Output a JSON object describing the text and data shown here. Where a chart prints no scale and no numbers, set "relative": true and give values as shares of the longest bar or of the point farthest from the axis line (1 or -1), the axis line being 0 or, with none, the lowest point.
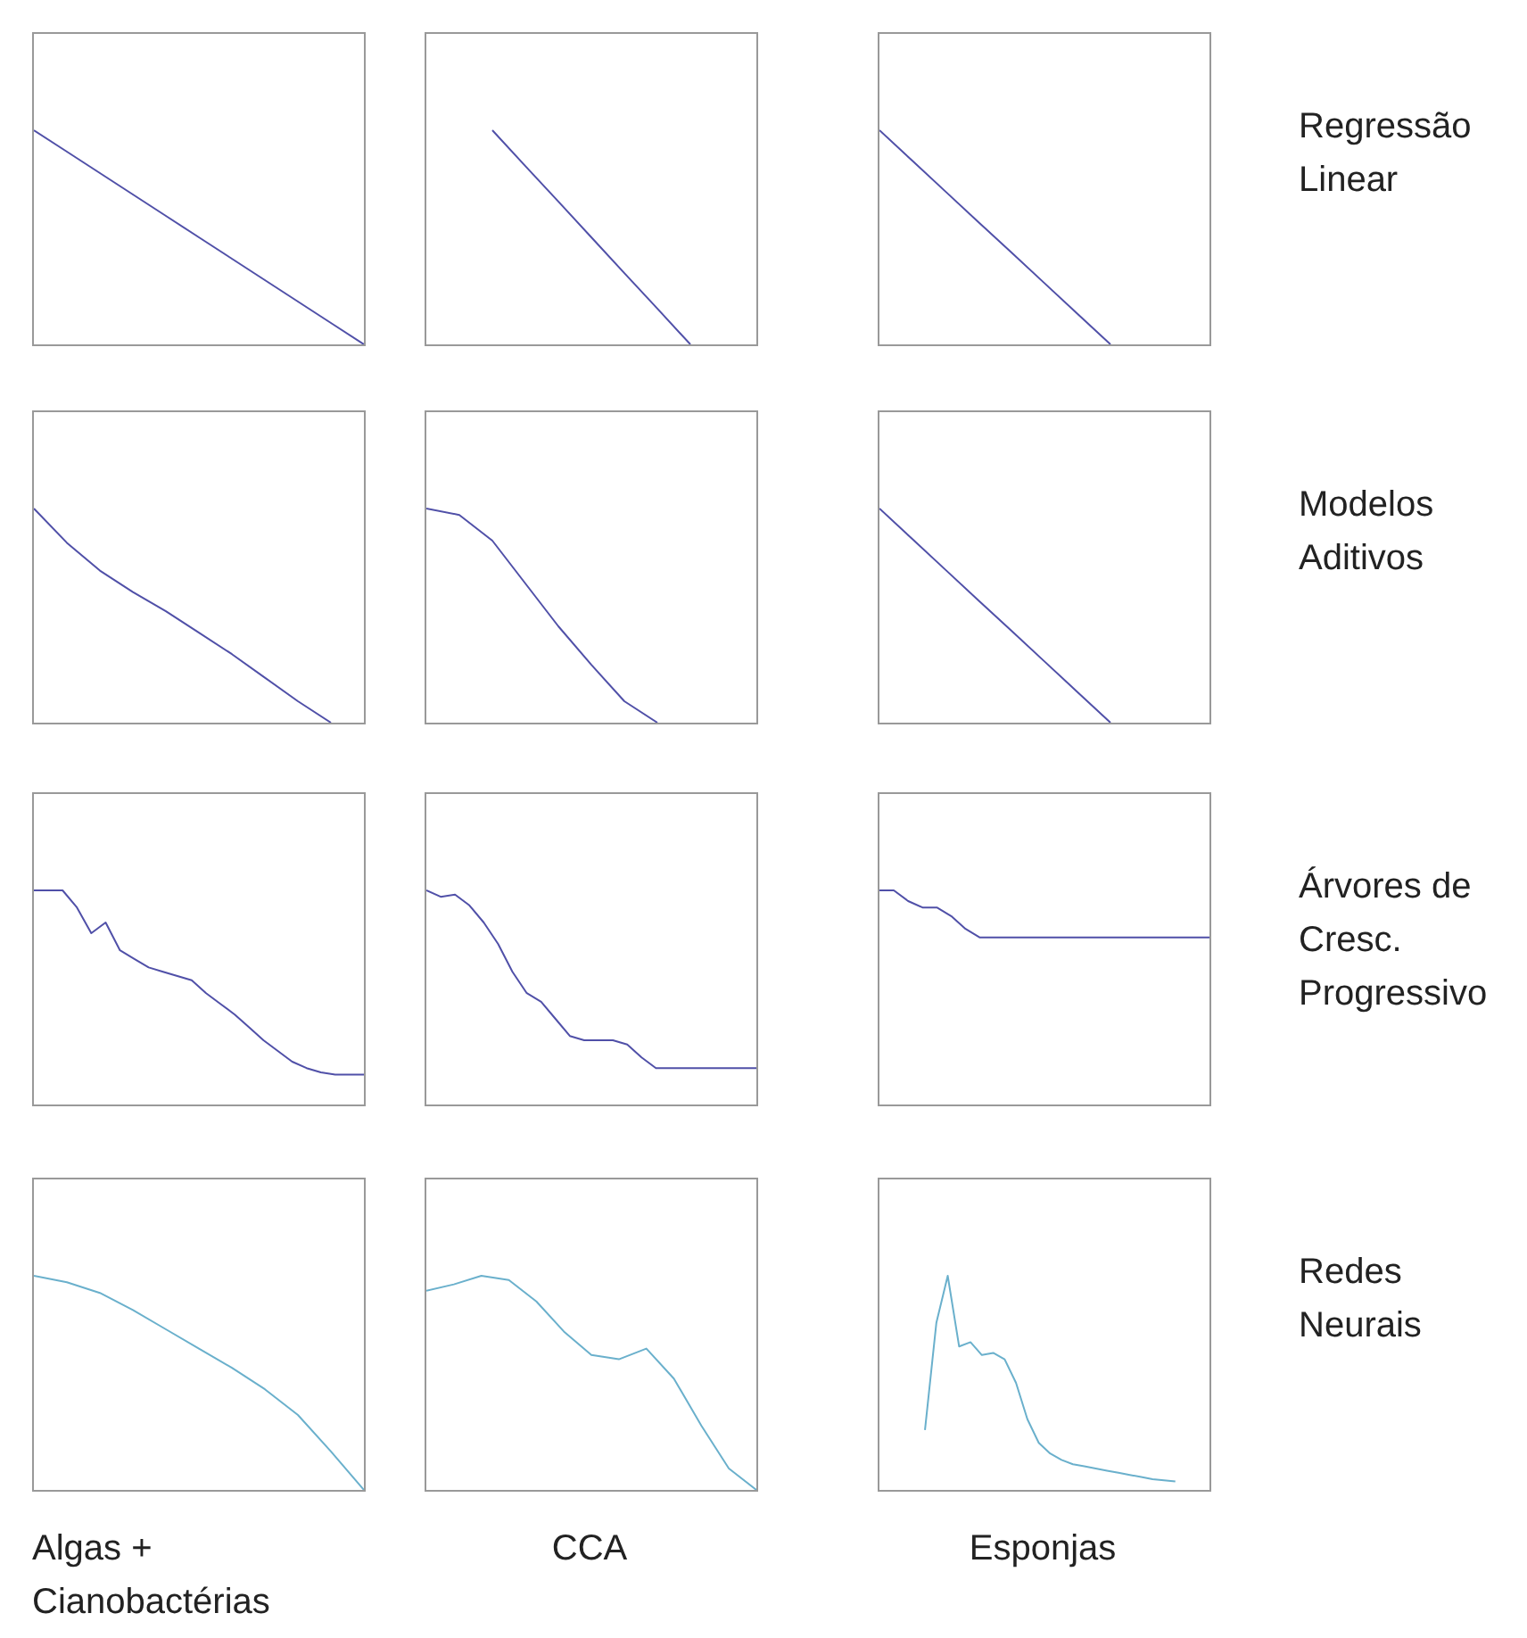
{
  "chart_data": [
    {
      "type": "line",
      "relative": true,
      "categories": [
        null,
        null,
        null,
        null,
        null,
        null,
        null,
        null,
        null,
        null,
        null
      ],
      "series": [
        {
          "color": "#5050a8",
          "values": [
            1,
            0.9,
            0.8,
            0.7,
            0.6,
            0.5,
            0.4,
            0.3,
            0.2,
            0.1,
            0
          ]
        }
      ]
    },
    {
      "type": "line",
      "relative": true,
      "categories": [
        null,
        null,
        null,
        null,
        null,
        null,
        null,
        null,
        null,
        null,
        null
      ],
      "series": [
        {
          "color": "#5050a8",
          "values": [
            null,
            null,
            1,
            0.833,
            0.667,
            0.5,
            0.333,
            0.167,
            0,
            null,
            null
          ]
        }
      ]
    },
    {
      "type": "line",
      "relative": true,
      "y2label": "Regressão Linear",
      "categories": [
        null,
        null,
        null,
        null,
        null,
        null,
        null,
        null,
        null,
        null,
        null
      ],
      "series": [
        {
          "color": "#5050a8",
          "values": [
            1,
            0.857,
            0.714,
            0.571,
            0.429,
            0.286,
            0.143,
            0,
            null,
            null,
            null
          ]
        }
      ]
    },
    {
      "type": "line",
      "relative": true,
      "categories": [
        null,
        null,
        null,
        null,
        null,
        null,
        null,
        null,
        null,
        null,
        null
      ],
      "series": [
        {
          "color": "#5050a8",
          "values": [
            1,
            0.84,
            0.71,
            0.61,
            0.52,
            0.42,
            0.32,
            0.21,
            0.1,
            0,
            null
          ]
        }
      ]
    },
    {
      "type": "line",
      "relative": true,
      "categories": [
        null,
        null,
        null,
        null,
        null,
        null,
        null,
        null,
        null,
        null,
        null
      ],
      "series": [
        {
          "color": "#5050a8",
          "values": [
            1,
            0.97,
            0.85,
            0.65,
            0.45,
            0.27,
            0.1,
            0,
            null,
            null,
            null
          ]
        }
      ]
    },
    {
      "type": "line",
      "relative": true,
      "y2label": "Modelos Aditivos",
      "categories": [
        null,
        null,
        null,
        null,
        null,
        null,
        null,
        null,
        null,
        null,
        null
      ],
      "series": [
        {
          "color": "#5050a8",
          "values": [
            1,
            0.857,
            0.714,
            0.571,
            0.429,
            0.286,
            0.143,
            0,
            null,
            null,
            null
          ]
        }
      ]
    },
    {
      "type": "line",
      "relative": true,
      "categories": [
        null,
        null,
        null,
        null,
        null,
        null,
        null,
        null,
        null,
        null,
        null,
        null,
        null,
        null,
        null,
        null,
        null,
        null,
        null,
        null,
        null,
        null,
        null,
        null
      ],
      "series": [
        {
          "color": "#5050a8",
          "values": [
            1,
            1,
            1,
            0.92,
            0.8,
            0.85,
            0.72,
            0.68,
            0.64,
            0.62,
            0.6,
            0.58,
            0.52,
            0.47,
            0.42,
            0.36,
            0.3,
            0.25,
            0.2,
            0.17,
            0.15,
            0.14,
            0.14,
            0.14
          ]
        }
      ]
    },
    {
      "type": "line",
      "relative": true,
      "categories": [
        null,
        null,
        null,
        null,
        null,
        null,
        null,
        null,
        null,
        null,
        null,
        null,
        null,
        null,
        null,
        null,
        null,
        null,
        null,
        null,
        null,
        null,
        null,
        null
      ],
      "series": [
        {
          "color": "#5050a8",
          "values": [
            1,
            0.97,
            0.98,
            0.93,
            0.85,
            0.75,
            0.62,
            0.52,
            0.48,
            0.4,
            0.32,
            0.3,
            0.3,
            0.3,
            0.28,
            0.22,
            0.17,
            0.17,
            0.17,
            0.17,
            0.17,
            0.17,
            0.17,
            0.17
          ]
        }
      ]
    },
    {
      "type": "line",
      "relative": true,
      "y2label": "Árvores de Cresc. Progressivo",
      "categories": [
        null,
        null,
        null,
        null,
        null,
        null,
        null,
        null,
        null,
        null,
        null,
        null,
        null,
        null,
        null,
        null,
        null,
        null,
        null,
        null,
        null,
        null,
        null,
        null
      ],
      "series": [
        {
          "color": "#5050a8",
          "values": [
            1,
            1,
            0.95,
            0.92,
            0.92,
            0.88,
            0.82,
            0.78,
            0.78,
            0.78,
            0.78,
            0.78,
            0.78,
            0.78,
            0.78,
            0.78,
            0.78,
            0.78,
            0.78,
            0.78,
            0.78,
            0.78,
            0.78,
            0.78
          ]
        }
      ]
    },
    {
      "type": "line",
      "relative": true,
      "xlabel": "Algas + Cianobactérias",
      "categories": [
        null,
        null,
        null,
        null,
        null,
        null,
        null,
        null,
        null,
        null,
        null
      ],
      "series": [
        {
          "color": "#6ab0cc",
          "values": [
            1,
            0.97,
            0.92,
            0.84,
            0.75,
            0.66,
            0.57,
            0.47,
            0.35,
            0.18,
            0
          ]
        }
      ]
    },
    {
      "type": "line",
      "relative": true,
      "xlabel": "CCA",
      "categories": [
        null,
        null,
        null,
        null,
        null,
        null,
        null,
        null,
        null,
        null,
        null,
        null,
        null
      ],
      "series": [
        {
          "color": "#6ab0cc",
          "values": [
            0.93,
            0.96,
            1,
            0.98,
            0.88,
            0.74,
            0.63,
            0.61,
            0.66,
            0.52,
            0.3,
            0.1,
            0
          ]
        }
      ]
    },
    {
      "type": "line",
      "relative": true,
      "xlabel": "Esponjas",
      "y2label": "Redes Neurais",
      "categories": [
        null,
        null,
        null,
        null,
        null,
        null,
        null,
        null,
        null,
        null,
        null,
        null,
        null,
        null,
        null,
        null,
        null,
        null,
        null,
        null,
        null,
        null,
        null,
        null,
        null,
        null,
        null,
        null,
        null,
        null
      ],
      "series": [
        {
          "color": "#6ab0cc",
          "values": [
            null,
            null,
            null,
            null,
            0.28,
            0.78,
            1,
            0.67,
            0.69,
            0.63,
            0.64,
            0.61,
            0.5,
            0.33,
            0.22,
            0.17,
            0.14,
            0.12,
            0.11,
            0.1,
            0.09,
            0.08,
            0.07,
            0.06,
            0.05,
            0.045,
            0.04,
            null,
            null,
            null
          ]
        }
      ]
    }
  ]
}
